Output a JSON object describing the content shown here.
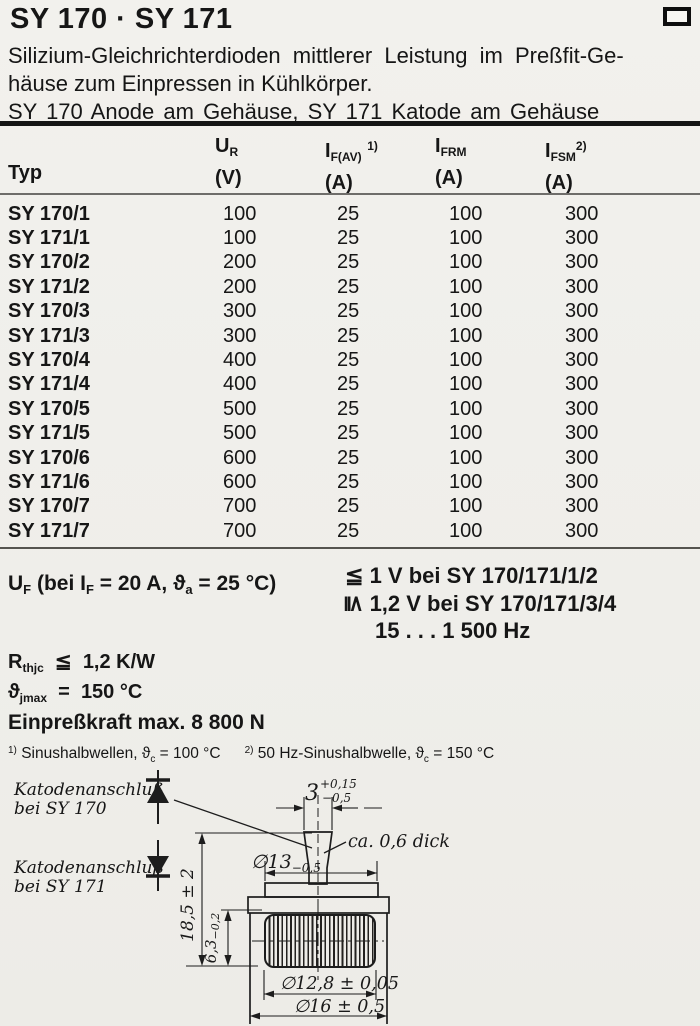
{
  "header": {
    "title": "SY 170 · SY 171"
  },
  "intro": {
    "line1": "Silizium-Gleichrichterdioden mittlerer Leistung im Preßfit-Ge-",
    "line2": "häuse zum Einpressen in Kühlkörper.",
    "line3": "SY 170 Anode am Gehäuse, SY 171 Katode am Gehäuse"
  },
  "table": {
    "col_typ": "Typ",
    "cols": [
      {
        "sym": "U",
        "sub": "R",
        "sup": "",
        "unit": "(V)"
      },
      {
        "sym": "I",
        "sub": "F(AV)",
        "sup": "1)",
        "unit": "(A)"
      },
      {
        "sym": "I",
        "sub": "FRM",
        "sup": "",
        "unit": "(A)"
      },
      {
        "sym": "I",
        "sub": "FSM",
        "sup": "2)",
        "unit": "(A)"
      }
    ],
    "rows": [
      [
        "SY 170/1",
        "100",
        "25",
        "100",
        "300"
      ],
      [
        "SY 171/1",
        "100",
        "25",
        "100",
        "300"
      ],
      [
        "SY 170/2",
        "200",
        "25",
        "100",
        "300"
      ],
      [
        "SY 171/2",
        "200",
        "25",
        "100",
        "300"
      ],
      [
        "SY 170/3",
        "300",
        "25",
        "100",
        "300"
      ],
      [
        "SY 171/3",
        "300",
        "25",
        "100",
        "300"
      ],
      [
        "SY 170/4",
        "400",
        "25",
        "100",
        "300"
      ],
      [
        "SY 171/4",
        "400",
        "25",
        "100",
        "300"
      ],
      [
        "SY 170/5",
        "500",
        "25",
        "100",
        "300"
      ],
      [
        "SY 171/5",
        "500",
        "25",
        "100",
        "300"
      ],
      [
        "SY 170/6",
        "600",
        "25",
        "100",
        "300"
      ],
      [
        "SY 171/6",
        "600",
        "25",
        "100",
        "300"
      ],
      [
        "SY 170/7",
        "700",
        "25",
        "100",
        "300"
      ],
      [
        "SY 171/7",
        "700",
        "25",
        "100",
        "300"
      ]
    ]
  },
  "uf": {
    "lhs_main": "U",
    "lhs_sub": "F",
    "cond_pre": " (bei I",
    "cond_sub1": "F",
    "cond_mid": " = 20 A, ϑ",
    "cond_sub2": "a",
    "cond_post": " = 25 °C)",
    "line1_sym": "≦",
    "line1_text": "1 V bei SY 170/171/1/2",
    "line2_sym": "≦",
    "line2_text": "1,2 V bei SY 170/171/3/4",
    "line3_text": "15 . . . 1 500 Hz"
  },
  "ratings": {
    "rth_sym": "R",
    "rth_sub": "thjc",
    "rth_rel": "≦",
    "rth_val": "1,2 K/W",
    "theta_sym": "ϑ",
    "theta_sub": "jmax",
    "theta_rel": "=",
    "theta_val": "150 °C",
    "force": "Einpreßkraft max. 8 800 N"
  },
  "footnotes": {
    "fn1_marker": "1)",
    "fn1_pre": " Sinushalbwellen, ϑ",
    "fn1_sub": "c",
    "fn1_post": " = 100 °C",
    "fn2_marker": "2)",
    "fn2_pre": " 50 Hz-Sinushalbwelle, ϑ",
    "fn2_sub": "c",
    "fn2_post": " = 150 °C"
  },
  "drawing": {
    "label_kat_1": "Katodenanschluß",
    "label_kat170": "bei SY 170",
    "label_kat_2": "Katodenanschluß",
    "label_kat171": "bei SY 171",
    "dim_pin": "3",
    "dim_pin_plus": "+0,15",
    "dim_pin_minus": "−0,5",
    "dim_thick": "ca. 0,6 dick",
    "dim_d13": "∅13",
    "dim_d13_tol": "−0,5",
    "dim_height": "18,5 ± 2",
    "dim_knurl": "6,3",
    "dim_knurl_tol": "−0,2",
    "dim_d128": "∅12,8 ± 0,05",
    "dim_d16": "∅16 ± 0,5"
  }
}
